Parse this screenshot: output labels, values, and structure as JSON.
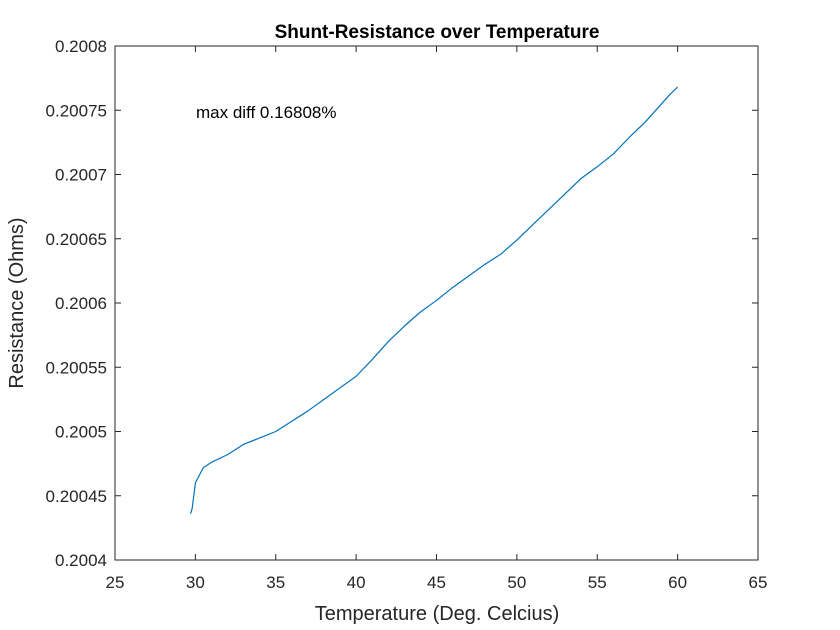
{
  "chart_data": {
    "type": "line",
    "title": "Shunt-Resistance over Temperature",
    "xlabel": "Temperature (Deg. Celcius)",
    "ylabel": "Resistance (Ohms)",
    "xlim": [
      25,
      65
    ],
    "ylim": [
      0.2004,
      0.2008
    ],
    "xticks": [
      25,
      30,
      35,
      40,
      45,
      50,
      55,
      60,
      65
    ],
    "xtick_labels": [
      "25",
      "30",
      "35",
      "40",
      "45",
      "50",
      "55",
      "60",
      "65"
    ],
    "yticks": [
      0.2004,
      0.20045,
      0.2005,
      0.20055,
      0.2006,
      0.20065,
      0.2007,
      0.20075,
      0.2008
    ],
    "ytick_labels": [
      "0.2004",
      "0.20045",
      "0.2005",
      "0.20055",
      "0.2006",
      "0.20065",
      "0.2007",
      "0.20075",
      "0.2008"
    ],
    "grid": false,
    "annotation": "max diff 0.16808%",
    "line_color": "#0072BD",
    "series": [
      {
        "x": [
          29.7,
          29.8,
          30.0,
          30.5,
          31,
          32,
          33,
          34,
          35,
          36,
          37,
          38,
          39,
          40,
          41,
          42,
          43,
          44,
          45,
          46,
          47,
          48,
          49,
          50,
          51,
          52,
          53,
          54,
          55,
          56,
          57,
          58,
          59,
          59.5,
          60.0
        ],
        "y": [
          0.200436,
          0.20044,
          0.20046,
          0.200472,
          0.200476,
          0.200482,
          0.20049,
          0.200495,
          0.2005,
          0.200508,
          0.200516,
          0.200525,
          0.200534,
          0.200543,
          0.200556,
          0.20057,
          0.200582,
          0.200593,
          0.200602,
          0.200612,
          0.200621,
          0.20063,
          0.200638,
          0.200649,
          0.200661,
          0.200673,
          0.200685,
          0.200697,
          0.200706,
          0.200716,
          0.200729,
          0.200741,
          0.200755,
          0.200762,
          0.200768
        ]
      }
    ]
  }
}
